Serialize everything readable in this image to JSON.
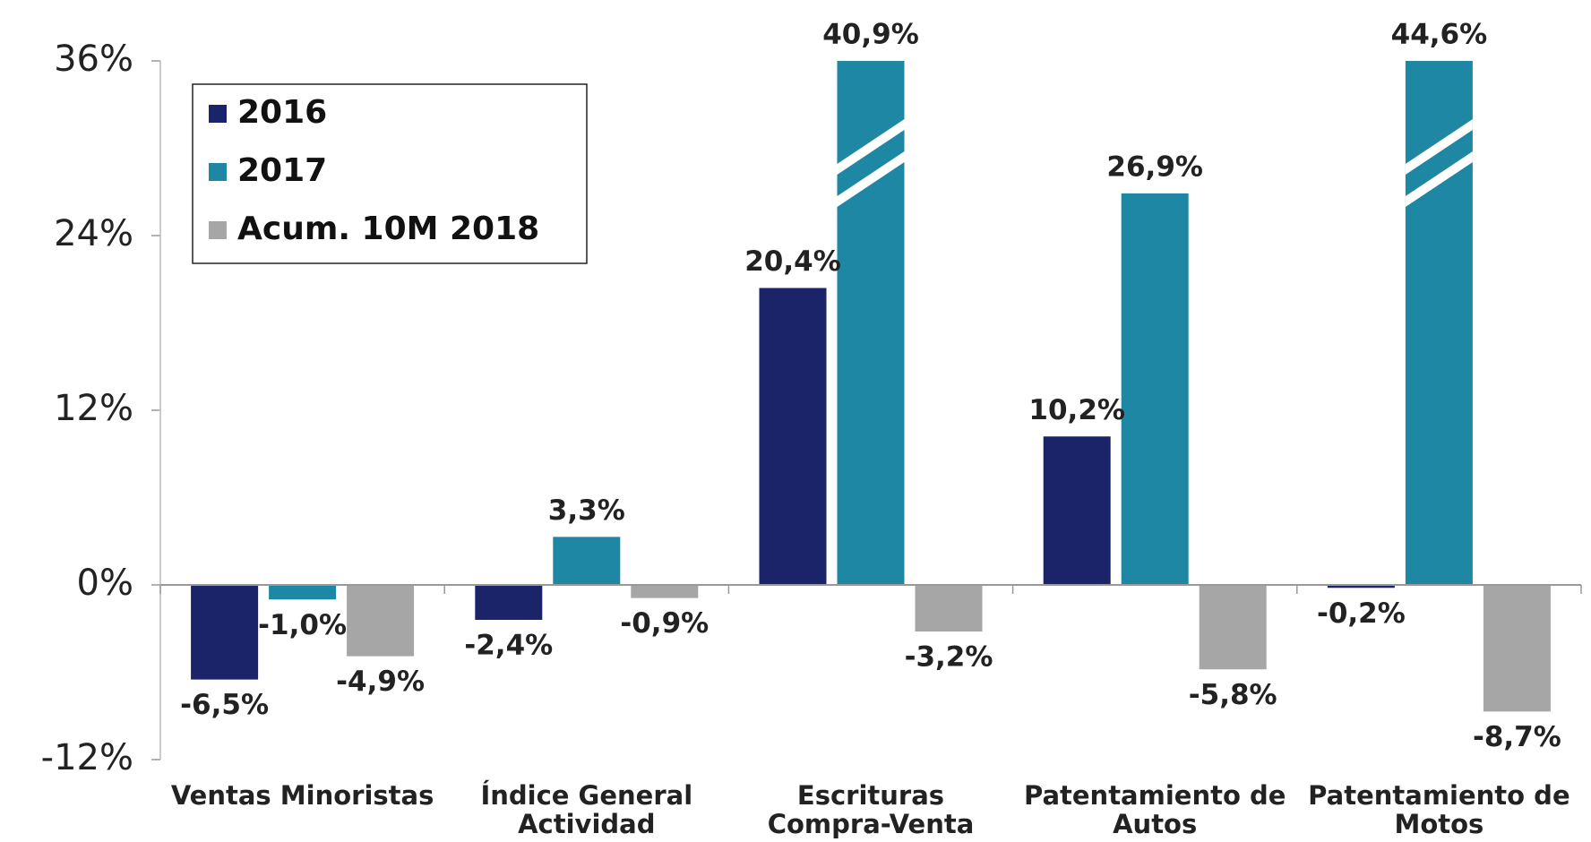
{
  "chart_data": {
    "type": "bar",
    "categories": [
      "Ventas Minoristas",
      "Índice General Actividad",
      "Escrituras Compra-Venta",
      "Patentamiento de Autos",
      "Patentamiento de Motos"
    ],
    "series": [
      {
        "name": "2016",
        "color": "#1b2468",
        "values": [
          -6.5,
          -2.4,
          20.4,
          10.2,
          -0.2
        ],
        "value_labels": [
          "-6,5%",
          "-2,4%",
          "20,4%",
          "10,2%",
          "-0,2%"
        ]
      },
      {
        "name": "2017",
        "color": "#1e87a3",
        "values": [
          -1.0,
          3.3,
          40.9,
          26.9,
          44.6
        ],
        "value_labels": [
          "-1,0%",
          "3,3%",
          "40,9%",
          "26,9%",
          "44,6%"
        ]
      },
      {
        "name": "Acum. 10M 2018",
        "color": "#a6a6a6",
        "values": [
          -4.9,
          -0.9,
          -3.2,
          -5.8,
          -8.7
        ],
        "value_labels": [
          "-4,9%",
          "-0,9%",
          "-3,2%",
          "-5,8%",
          "-8,7%"
        ]
      }
    ],
    "ylim": [
      -12,
      36
    ],
    "yticks": [
      {
        "value": -12,
        "label": "-12%"
      },
      {
        "value": 0,
        "label": "0%"
      },
      {
        "value": 12,
        "label": "12%"
      },
      {
        "value": 24,
        "label": "24%"
      },
      {
        "value": 36,
        "label": "36%"
      }
    ],
    "legend": "top-left"
  }
}
